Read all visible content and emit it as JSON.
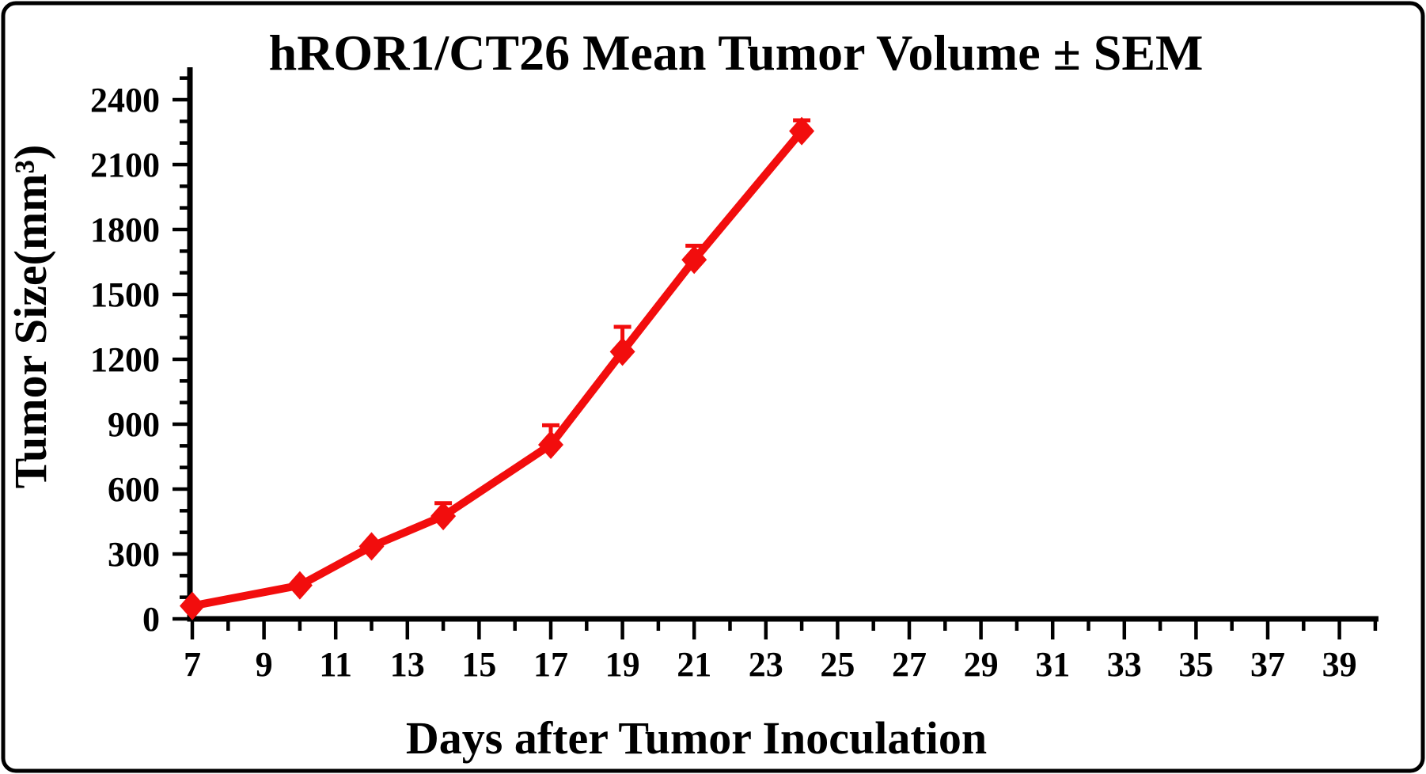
{
  "figure": {
    "background_color": "#ffffff",
    "frame_border_color": "#000000"
  },
  "chart_data": {
    "type": "line",
    "title": "hROR1/CT26 Mean Tumor Volume ± SEM",
    "xlabel": "Days after Tumor Inoculation",
    "ylabel": "Tumor Size(mm³)",
    "grid": false,
    "legend": "none",
    "x_axis": {
      "min": 7,
      "max": 40,
      "major_tick_days": [
        7,
        9,
        11,
        13,
        15,
        17,
        19,
        21,
        23,
        25,
        27,
        29,
        31,
        33,
        35,
        37,
        39
      ],
      "minor_tick_days": [
        8,
        10,
        12,
        14,
        16,
        18,
        20,
        22,
        24,
        26,
        28,
        30,
        32,
        34,
        36,
        38,
        40
      ],
      "tick_labels": [
        "7",
        "9",
        "11",
        "13",
        "15",
        "17",
        "19",
        "21",
        "23",
        "25",
        "27",
        "29",
        "31",
        "33",
        "35",
        "37",
        "39"
      ]
    },
    "y_axis": {
      "min": 0,
      "max": 2500,
      "major_step": 300,
      "minor_step": 100,
      "major_tick_values": [
        0,
        300,
        600,
        900,
        1200,
        1500,
        1800,
        2100,
        2400
      ],
      "tick_labels": [
        "0",
        "300",
        "600",
        "900",
        "1200",
        "1500",
        "1800",
        "2100",
        "2400"
      ]
    },
    "series": [
      {
        "name": "hROR1/CT26 mean tumor volume",
        "color": "#f20d0d",
        "marker": "diamond",
        "error_bar_type": "SEM upper",
        "points": [
          {
            "day": 7,
            "volume": 60,
            "sem": 0
          },
          {
            "day": 10,
            "volume": 155,
            "sem": 0
          },
          {
            "day": 12,
            "volume": 335,
            "sem": 0
          },
          {
            "day": 14,
            "volume": 475,
            "sem": 60
          },
          {
            "day": 17,
            "volume": 805,
            "sem": 90
          },
          {
            "day": 19,
            "volume": 1235,
            "sem": 115
          },
          {
            "day": 21,
            "volume": 1660,
            "sem": 65
          },
          {
            "day": 24,
            "volume": 2255,
            "sem": 50
          }
        ]
      }
    ]
  }
}
